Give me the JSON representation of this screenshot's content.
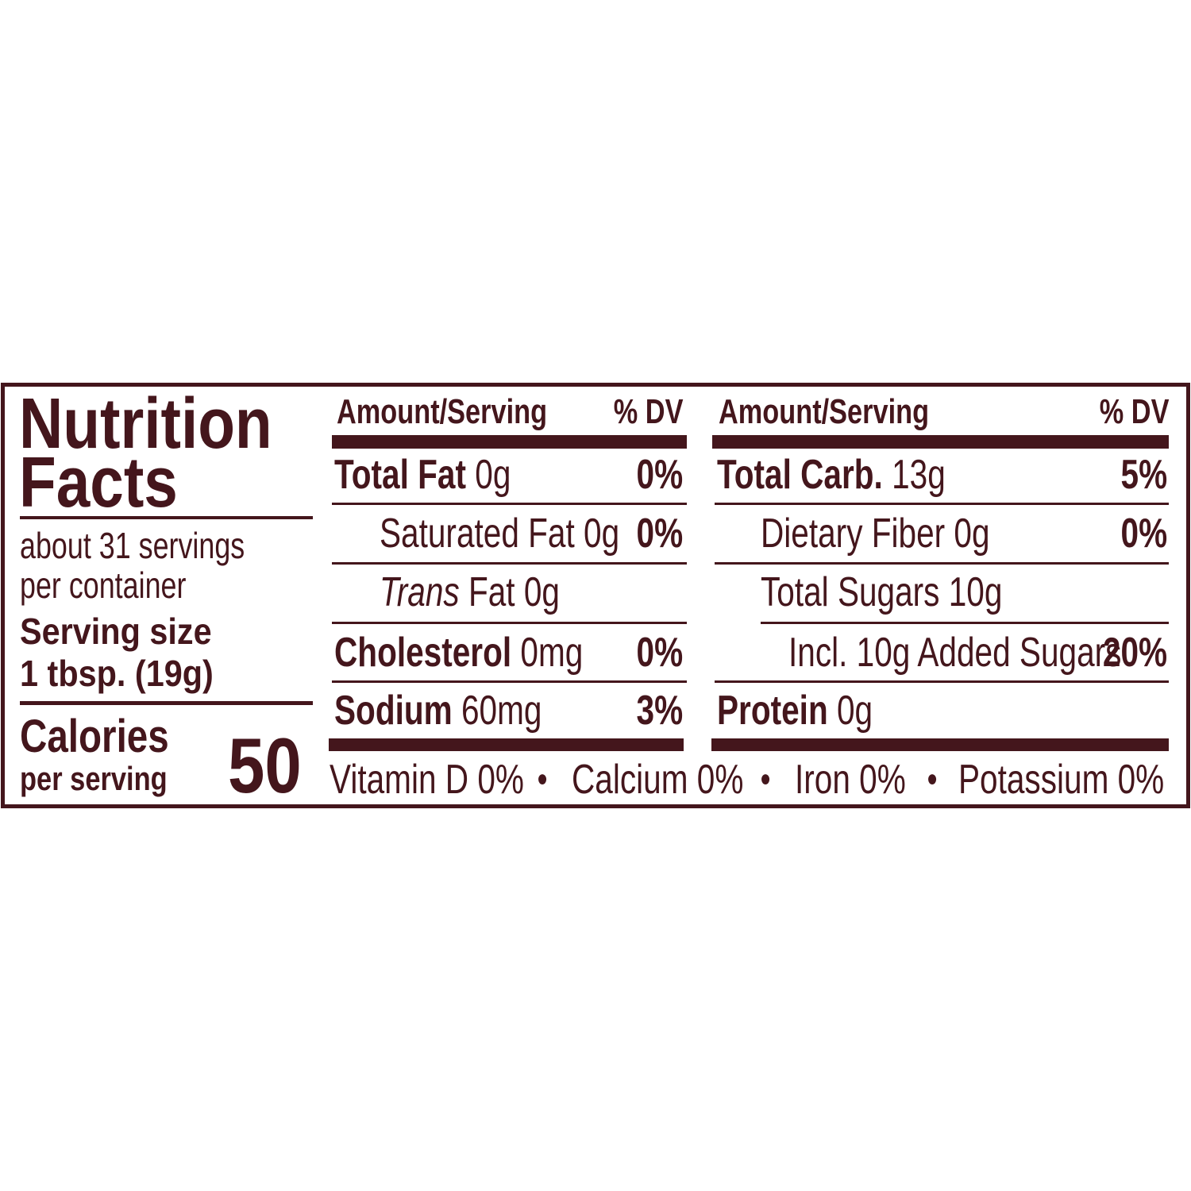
{
  "title": [
    "Nutrition",
    "Facts"
  ],
  "servings": [
    "about 31 servings",
    "per container"
  ],
  "serving_size": {
    "label": "Serving size",
    "value": "1 tbsp. (19g)"
  },
  "calories": {
    "label": "Calories",
    "sub": "per serving",
    "value": "50"
  },
  "header": {
    "amount": "Amount/Serving",
    "dv": "% DV"
  },
  "left_rows": [
    {
      "name": "Total Fat",
      "amount": "0g",
      "dv": "0%"
    },
    {
      "name": "Saturated Fat",
      "amount": "0g",
      "dv": "0%"
    },
    {
      "name": "Trans",
      "amount": "Fat 0g",
      "dv": ""
    },
    {
      "name": "Cholesterol",
      "amount": "0mg",
      "dv": "0%"
    },
    {
      "name": "Sodium",
      "amount": "60mg",
      "dv": "3%"
    }
  ],
  "right_rows": [
    {
      "name": "Total Carb.",
      "amount": "13g",
      "dv": "5%"
    },
    {
      "name": "Dietary Fiber",
      "amount": "0g",
      "dv": "0%"
    },
    {
      "name": "Total Sugars",
      "amount": "10g",
      "dv": ""
    },
    {
      "name": "Incl. 10g Added Sugars",
      "amount": "",
      "dv": "20%"
    },
    {
      "name": "Protein",
      "amount": "0g",
      "dv": ""
    }
  ],
  "vitamins": [
    "Vitamin D 0%",
    "Calcium 0%",
    "Iron 0%",
    "Potassium 0%"
  ],
  "bullet": "●",
  "colors": {
    "ink": "#44161c",
    "background": "#ffffff"
  }
}
